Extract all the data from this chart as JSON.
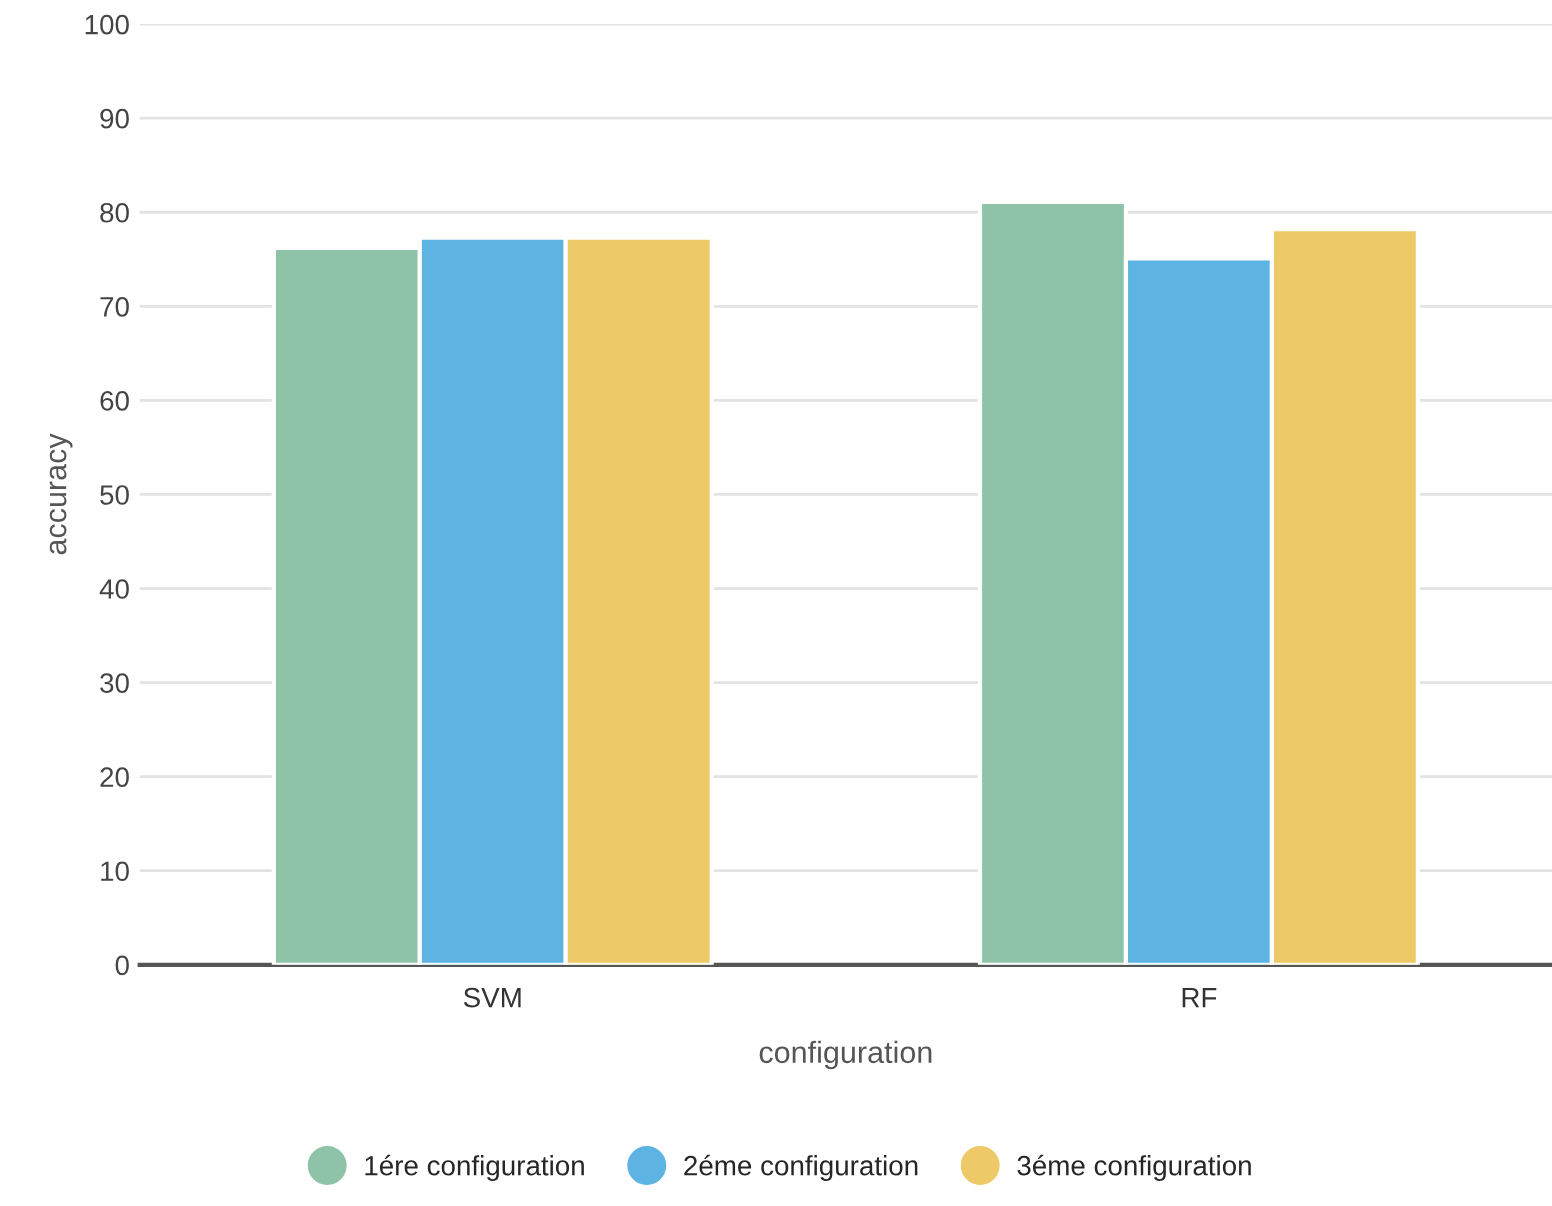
{
  "chart_data": {
    "type": "bar",
    "xlabel": "configuration",
    "ylabel": "accuracy",
    "categories": [
      "SVM",
      "RF"
    ],
    "series": [
      {
        "name": "1ére configuration",
        "color": "#8ec3a7",
        "values": [
          76.2,
          81.1
        ]
      },
      {
        "name": "2éme configuration",
        "color": "#5db4e3",
        "values": [
          77.3,
          75.1
        ]
      },
      {
        "name": "3éme configuration",
        "color": "#eec967",
        "values": [
          77.3,
          78.2
        ]
      }
    ],
    "ylim": [
      0,
      100
    ],
    "yticks": [
      0,
      10,
      20,
      30,
      40,
      50,
      60,
      70,
      80,
      90,
      100
    ],
    "grid": "y",
    "legend": "bottom"
  }
}
